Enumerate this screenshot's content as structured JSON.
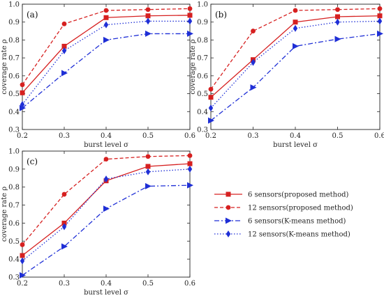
{
  "chart_data": [
    {
      "type": "line",
      "panel_label": "(a)",
      "x": [
        0.2,
        0.3,
        0.4,
        0.5,
        0.6
      ],
      "xlabel": "burst level σ",
      "ylabel": "coverage rate ρ",
      "xlim": [
        0.2,
        0.6
      ],
      "ylim": [
        0.3,
        1.0
      ],
      "xticks": [
        "0.2",
        "0.3",
        "0.4",
        "0.5",
        "0.6"
      ],
      "yticks": [
        "0.3",
        "0.4",
        "0.5",
        "0.6",
        "0.7",
        "0.8",
        "0.9",
        "1.0"
      ],
      "series": [
        {
          "values": [
            0.505,
            0.765,
            0.925,
            0.935,
            0.938
          ]
        },
        {
          "values": [
            0.55,
            0.89,
            0.965,
            0.97,
            0.975
          ]
        },
        {
          "values": [
            0.42,
            0.615,
            0.8,
            0.835,
            0.835
          ]
        },
        {
          "values": [
            0.44,
            0.74,
            0.885,
            0.905,
            0.905
          ]
        }
      ]
    },
    {
      "type": "line",
      "panel_label": "(b)",
      "x": [
        0.2,
        0.3,
        0.4,
        0.5,
        0.6
      ],
      "xlabel": "burst level σ",
      "ylabel": "coverage rate ρ",
      "xlim": [
        0.2,
        0.6
      ],
      "ylim": [
        0.3,
        1.0
      ],
      "xticks": [
        "0.2",
        "0.3",
        "0.4",
        "0.5",
        "0.6"
      ],
      "yticks": [
        "0.3",
        "0.4",
        "0.5",
        "0.6",
        "0.7",
        "0.8",
        "0.9",
        "1.0"
      ],
      "series": [
        {
          "values": [
            0.48,
            0.69,
            0.9,
            0.93,
            0.935
          ]
        },
        {
          "values": [
            0.525,
            0.85,
            0.965,
            0.97,
            0.975
          ]
        },
        {
          "values": [
            0.35,
            0.535,
            0.765,
            0.805,
            0.835
          ]
        },
        {
          "values": [
            0.42,
            0.675,
            0.865,
            0.9,
            0.905
          ]
        }
      ]
    },
    {
      "type": "line",
      "panel_label": "(c)",
      "x": [
        0.2,
        0.3,
        0.4,
        0.5,
        0.6
      ],
      "xlabel": "burst level σ",
      "ylabel": "coverage rate ρ",
      "xlim": [
        0.2,
        0.6
      ],
      "ylim": [
        0.3,
        1.0
      ],
      "xticks": [
        "0.2",
        "0.3",
        "0.4",
        "0.5",
        "0.6"
      ],
      "yticks": [
        "0.3",
        "0.4",
        "0.5",
        "0.6",
        "0.7",
        "0.8",
        "0.9",
        "1.0"
      ],
      "series": [
        {
          "values": [
            0.42,
            0.6,
            0.835,
            0.915,
            0.93
          ]
        },
        {
          "values": [
            0.48,
            0.76,
            0.955,
            0.97,
            0.975
          ]
        },
        {
          "values": [
            0.31,
            0.47,
            0.68,
            0.805,
            0.81
          ]
        },
        {
          "values": [
            0.39,
            0.58,
            0.845,
            0.885,
            0.9
          ]
        }
      ]
    }
  ],
  "legend": {
    "placement": "right of panel (c)",
    "entries": [
      {
        "label": "6 sensors(proposed method)",
        "color": "#d62020",
        "marker": "square",
        "line": "solid"
      },
      {
        "label": "12 sensors(proposed method)",
        "color": "#d62020",
        "marker": "circle",
        "line": "dashed"
      },
      {
        "label": "6 sensors(K-means method)",
        "color": "#1f2fd6",
        "marker": "triangle-right",
        "line": "dash-dot"
      },
      {
        "label": "12 sensors(K-means method)",
        "color": "#1f2fd6",
        "marker": "diamond",
        "line": "dotted"
      }
    ]
  }
}
